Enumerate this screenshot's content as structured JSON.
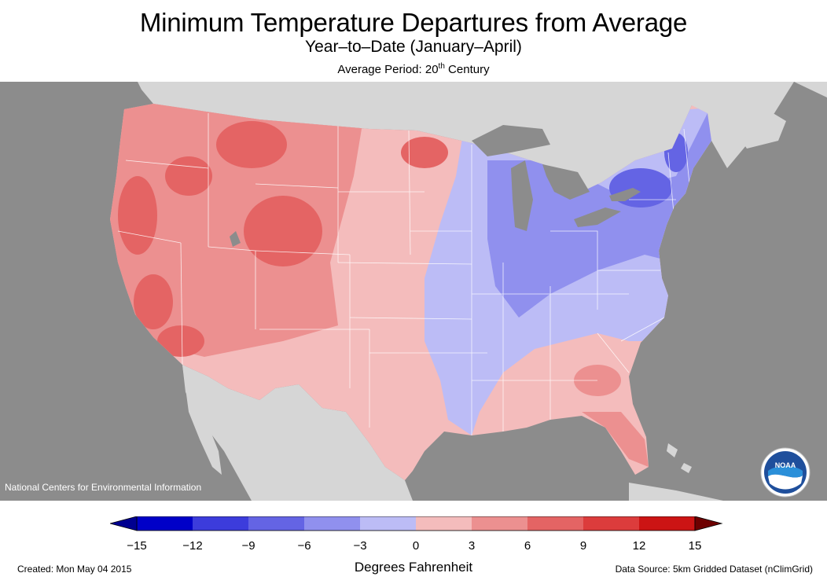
{
  "header": {
    "title": "Minimum Temperature Departures from Average",
    "subtitle": "Year–to–Date (January–April)",
    "period_prefix": "Average Period: 20",
    "period_sup": "th",
    "period_suffix": " Century"
  },
  "map": {
    "credit": "National Centers for Environmental Information",
    "logo_text": "NOAA",
    "colors": {
      "ocean": "#8c8c8c",
      "land_outside": "#d6d6d6",
      "lakes": "#8c8c8c",
      "state_border": "#ffffff"
    }
  },
  "legend": {
    "ticks": [
      "−15",
      "−12",
      "−9",
      "−6",
      "−3",
      "0",
      "3",
      "6",
      "9",
      "12",
      "15"
    ],
    "colors": [
      "#0000c8",
      "#3c3cdc",
      "#6464e4",
      "#9090ee",
      "#bcbcf6",
      "#f4bcbc",
      "#ec9090",
      "#e46464",
      "#dc3c3c",
      "#cc1414"
    ],
    "low_arrow_color": "#000090",
    "high_arrow_color": "#6e0000",
    "units": "Degrees Fahrenheit"
  },
  "footer": {
    "created": "Created: Mon May 04 2015",
    "source": "Data Source: 5km Gridded Dataset (nClimGrid)"
  }
}
